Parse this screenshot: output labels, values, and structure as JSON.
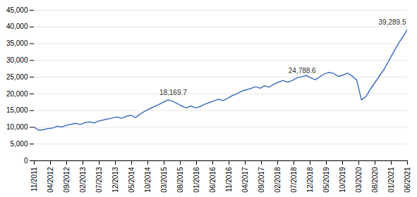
{
  "chart_data": {
    "type": "line",
    "color": "#4472C4",
    "grid": true,
    "values": [
      10000,
      9100,
      9300,
      9600,
      9800,
      10300,
      10100,
      10600,
      10900,
      11200,
      10800,
      11400,
      11600,
      11300,
      11900,
      12200,
      12500,
      12800,
      13100,
      12700,
      13300,
      13600,
      12900,
      14000,
      14800,
      15500,
      16200,
      16800,
      17500,
      18169.7,
      17800,
      17100,
      16400,
      15800,
      16400,
      15800,
      16200,
      16900,
      17400,
      17900,
      18400,
      18000,
      18700,
      19500,
      20000,
      20800,
      21200,
      21600,
      22100,
      21700,
      22400,
      22000,
      22900,
      23500,
      24000,
      23500,
      24000,
      24788.6,
      25100,
      25500,
      24800,
      24200,
      25100,
      26000,
      26400,
      26100,
      25200,
      25600,
      26200,
      25300,
      24100,
      18200,
      19200,
      21500,
      23500,
      25500,
      27500,
      30000,
      32500,
      35000,
      37000,
      39289.5
    ],
    "xlim": [
      0,
      23
    ],
    "xticks": [
      {
        "value": 0,
        "label": "11/2011"
      },
      {
        "value": 1,
        "label": "04/2012"
      },
      {
        "value": 2,
        "label": "09/2012"
      },
      {
        "value": 3,
        "label": "02/2013"
      },
      {
        "value": 4,
        "label": "07/2013"
      },
      {
        "value": 5,
        "label": "12/2013"
      },
      {
        "value": 6,
        "label": "05/2014"
      },
      {
        "value": 7,
        "label": "10/2014"
      },
      {
        "value": 8,
        "label": "03/2015"
      },
      {
        "value": 9,
        "label": "08/2015"
      },
      {
        "value": 10,
        "label": "01/2016"
      },
      {
        "value": 11,
        "label": "06/2016"
      },
      {
        "value": 12,
        "label": "11/2016"
      },
      {
        "value": 13,
        "label": "04/2017"
      },
      {
        "value": 14,
        "label": "09/2017"
      },
      {
        "value": 15,
        "label": "02/2018"
      },
      {
        "value": 16,
        "label": "07/2018"
      },
      {
        "value": 17,
        "label": "12/2018"
      },
      {
        "value": 18,
        "label": "05/2019"
      },
      {
        "value": 19,
        "label": "10/2019"
      },
      {
        "value": 20,
        "label": "03/2020"
      },
      {
        "value": 21,
        "label": "08/2020"
      },
      {
        "value": 22,
        "label": "01/2021"
      },
      {
        "value": 23,
        "label": "06/2021"
      }
    ],
    "ylim": [
      0,
      45000
    ],
    "yticks": [
      0,
      {
        "value": 5000,
        "label": "5,000"
      },
      {
        "value": 10000,
        "label": "10,000"
      },
      {
        "value": 15000,
        "label": "15,000"
      },
      {
        "value": 20000,
        "label": "20,000"
      },
      {
        "value": 25000,
        "label": "25,000"
      },
      {
        "value": 30000,
        "label": "30,000"
      },
      {
        "value": 35000,
        "label": "35,000"
      },
      {
        "value": 40000,
        "label": "40,000"
      },
      {
        "value": 45000,
        "label": "45,000"
      }
    ],
    "annotations": [
      {
        "label": "18,169.7",
        "value": 18169.7
      },
      {
        "label": "24,788.6",
        "value": 24788.6
      },
      {
        "label": "39,289.5",
        "value": 39289.5
      }
    ]
  }
}
